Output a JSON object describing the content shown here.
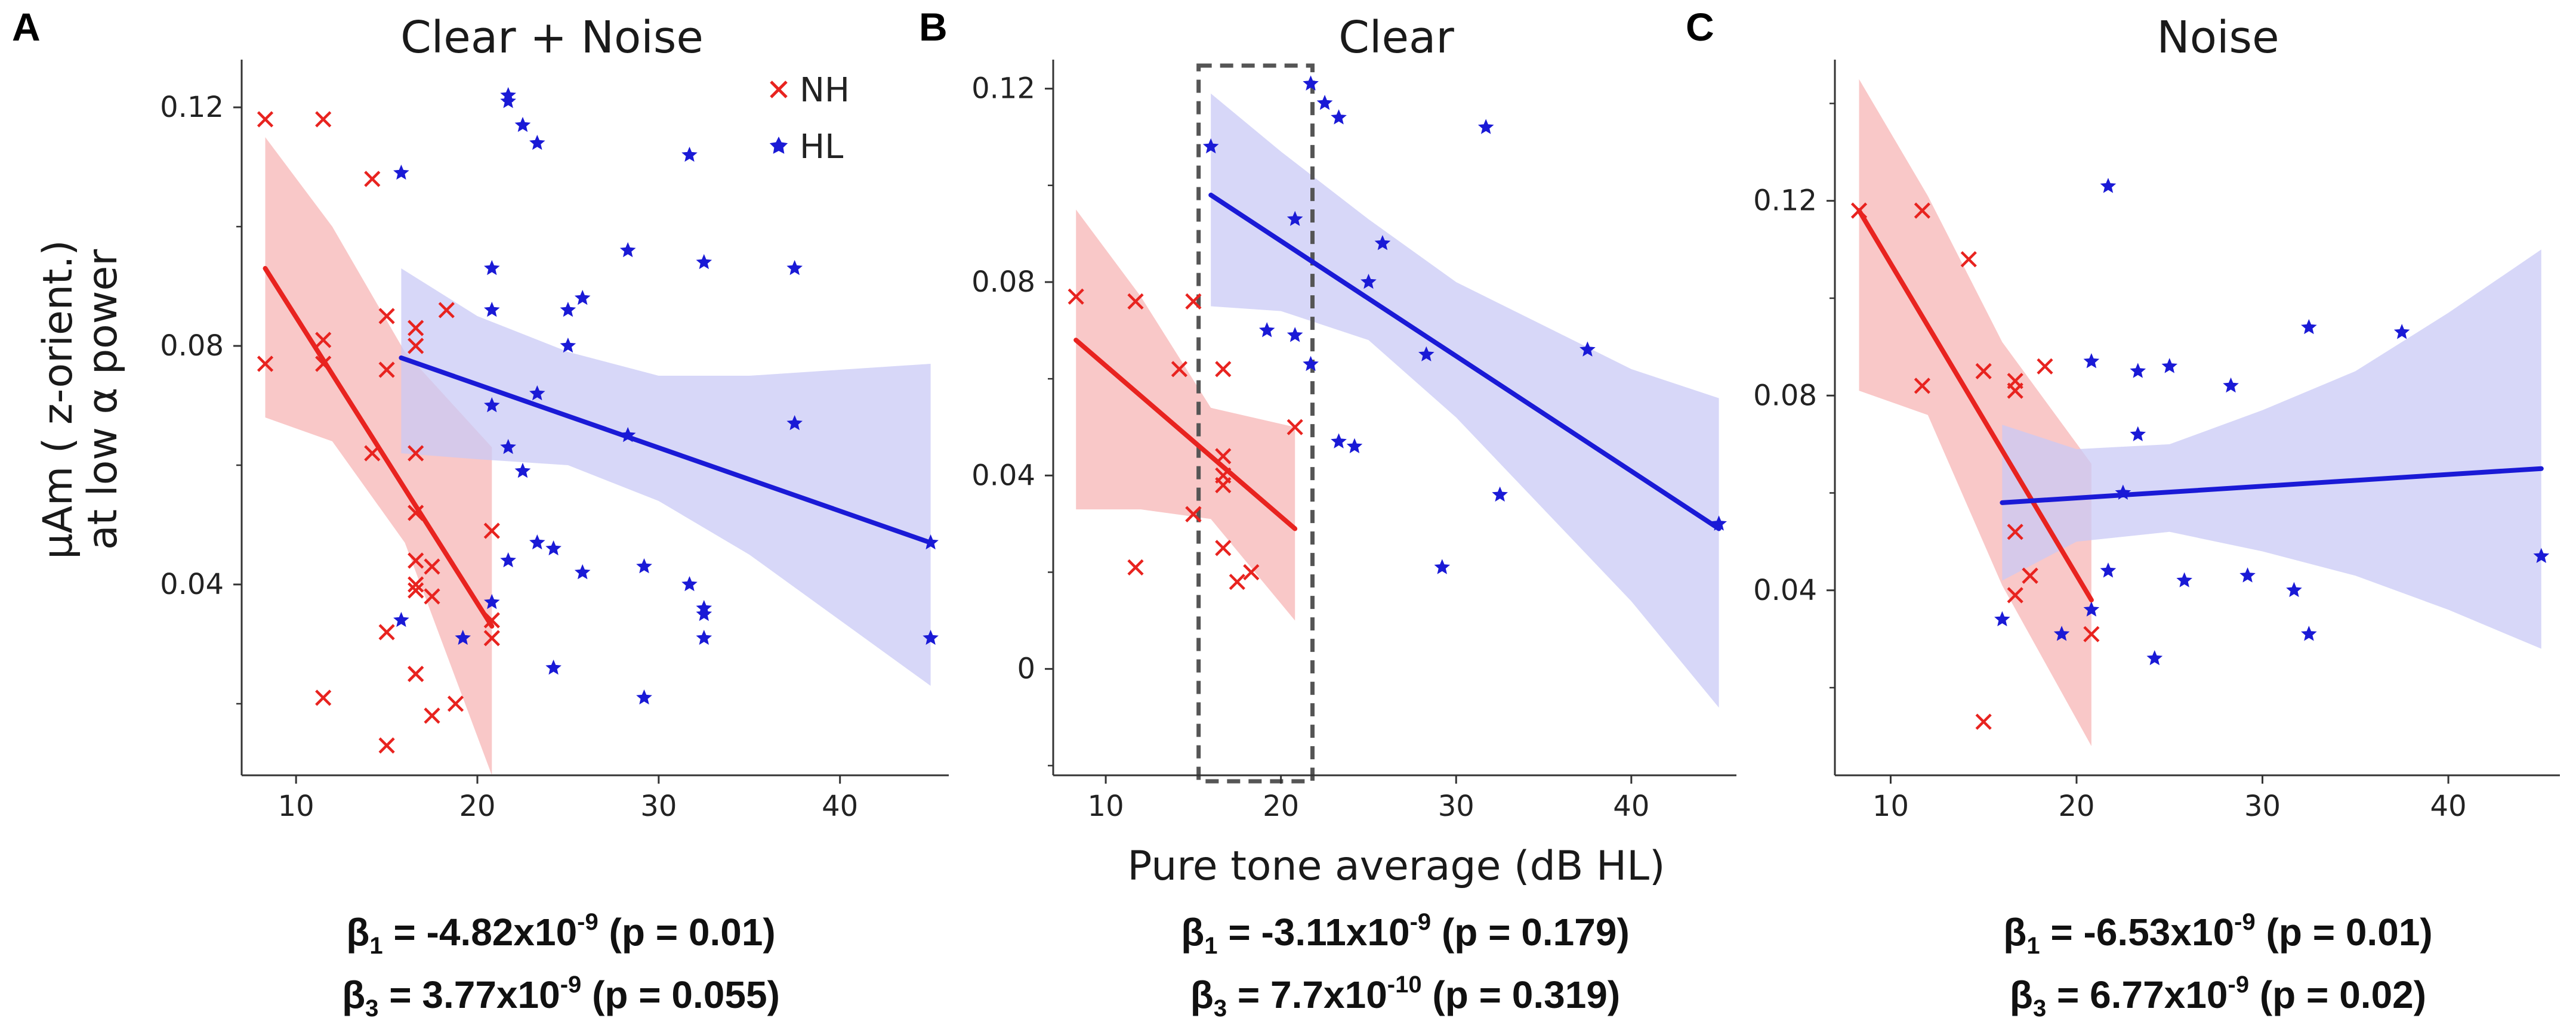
{
  "legend": {
    "nh_label": "NH",
    "hl_label": "HL"
  },
  "y_axis_label_line1": "μAm ( z-orient.)",
  "y_axis_label_line2": "at low α power",
  "x_axis_label": "Pure tone average (dB HL)",
  "colors": {
    "nh": "#e8231f",
    "hl": "#1a1ad6",
    "nh_band": "#f7b6b6",
    "hl_band": "#c9c9f5",
    "axis": "#333333",
    "box": "#555555"
  },
  "chart_data": [
    {
      "type": "scatter",
      "panel": "A",
      "title": "Clear + Noise",
      "xlim": [
        7,
        46
      ],
      "ylim": [
        0.008,
        0.128
      ],
      "xticks": [
        10,
        20,
        30,
        40
      ],
      "xtick_labels": [
        "10",
        "20",
        "30",
        "40"
      ],
      "yticks": [
        0.04,
        0.08,
        0.12
      ],
      "ytick_labels": [
        "0.04",
        "0.08",
        "0.12"
      ],
      "series": [
        {
          "name": "NH",
          "marker": "x",
          "x": [
            8.3,
            8.3,
            11.5,
            11.5,
            11.5,
            11.5,
            14.2,
            14.2,
            15.0,
            15.0,
            15.0,
            15.0,
            16.6,
            16.6,
            16.6,
            16.6,
            16.6,
            16.6,
            16.6,
            16.6,
            16.6,
            17.5,
            17.5,
            17.5,
            18.3,
            18.8,
            20.8,
            20.8,
            20.8
          ],
          "y": [
            0.118,
            0.077,
            0.118,
            0.081,
            0.077,
            0.021,
            0.108,
            0.062,
            0.085,
            0.076,
            0.032,
            0.013,
            0.083,
            0.08,
            0.062,
            0.052,
            0.044,
            0.04,
            0.039,
            0.025,
            0.025,
            0.043,
            0.038,
            0.018,
            0.086,
            0.02,
            0.049,
            0.034,
            0.031
          ],
          "fit": {
            "x": [
              8.3,
              20.8
            ],
            "y": [
              0.093,
              0.033
            ]
          },
          "ci": {
            "x": [
              8.3,
              12,
              16,
              20.8
            ],
            "upper": [
              0.115,
              0.1,
              0.079,
              0.063
            ],
            "lower": [
              0.068,
              0.064,
              0.047,
              0.003
            ]
          }
        },
        {
          "name": "HL",
          "marker": "star",
          "x": [
            15.8,
            15.8,
            19.2,
            20.8,
            20.8,
            20.8,
            20.8,
            21.7,
            21.7,
            21.7,
            21.7,
            22.5,
            22.5,
            23.3,
            23.3,
            23.3,
            24.2,
            24.2,
            25.0,
            25.0,
            25.8,
            25.8,
            28.3,
            28.3,
            29.2,
            29.2,
            31.7,
            31.7,
            32.5,
            32.5,
            32.5,
            32.5,
            37.5,
            37.5,
            45.0,
            45.0
          ],
          "y": [
            0.109,
            0.034,
            0.031,
            0.093,
            0.086,
            0.07,
            0.037,
            0.122,
            0.121,
            0.063,
            0.044,
            0.117,
            0.059,
            0.114,
            0.072,
            0.047,
            0.046,
            0.026,
            0.08,
            0.086,
            0.088,
            0.042,
            0.096,
            0.065,
            0.043,
            0.021,
            0.112,
            0.04,
            0.094,
            0.036,
            0.035,
            0.031,
            0.093,
            0.067,
            0.047,
            0.031
          ],
          "fit": {
            "x": [
              15.8,
              45.0
            ],
            "y": [
              0.078,
              0.047
            ]
          },
          "ci": {
            "x": [
              15.8,
              20,
              25,
              30,
              35,
              40,
              45
            ],
            "upper": [
              0.093,
              0.085,
              0.079,
              0.075,
              0.075,
              0.076,
              0.077
            ],
            "lower": [
              0.062,
              0.061,
              0.06,
              0.054,
              0.045,
              0.034,
              0.023
            ]
          }
        }
      ],
      "annotation_beta1": {
        "prefix": "β",
        "sub": "1",
        "value": " = -4.82x10",
        "exp": "-9",
        "suffix": " (p = 0.01)"
      },
      "annotation_beta3": {
        "prefix": "β",
        "sub": "3",
        "value": " = 3.77x10",
        "exp": "-9",
        "suffix": " (p = 0.055)"
      }
    },
    {
      "type": "scatter",
      "panel": "B",
      "title": "Clear",
      "xlim": [
        7,
        46
      ],
      "ylim": [
        -0.022,
        0.126
      ],
      "xticks": [
        10,
        20,
        30,
        40
      ],
      "xtick_labels": [
        "10",
        "20",
        "30",
        "40"
      ],
      "yticks": [
        0,
        0.04,
        0.08,
        0.12
      ],
      "ytick_labels": [
        "0",
        "0.04",
        "0.08",
        "0.12"
      ],
      "dashed_box": {
        "x": [
          15.3,
          21.8
        ]
      },
      "series": [
        {
          "name": "NH",
          "marker": "x",
          "x": [
            8.3,
            11.7,
            11.7,
            14.2,
            15.0,
            15.0,
            15.0,
            16.7,
            16.7,
            16.7,
            16.7,
            16.7,
            17.5,
            18.3,
            20.8
          ],
          "y": [
            0.077,
            0.076,
            0.021,
            0.062,
            0.076,
            0.032,
            0.032,
            0.062,
            0.044,
            0.04,
            0.038,
            0.025,
            0.018,
            0.02,
            0.05
          ],
          "fit": {
            "x": [
              8.3,
              20.8
            ],
            "y": [
              0.068,
              0.029
            ]
          },
          "ci": {
            "x": [
              8.3,
              12,
              16,
              20.8
            ],
            "upper": [
              0.095,
              0.077,
              0.054,
              0.05
            ],
            "lower": [
              0.033,
              0.033,
              0.031,
              0.01
            ]
          }
        },
        {
          "name": "HL",
          "marker": "star",
          "x": [
            16.0,
            19.2,
            20.8,
            20.8,
            21.7,
            21.7,
            22.5,
            23.3,
            23.3,
            24.2,
            25.0,
            25.8,
            28.3,
            29.2,
            31.7,
            32.5,
            37.5,
            45.0
          ],
          "y": [
            0.108,
            0.07,
            0.093,
            0.069,
            0.121,
            0.063,
            0.117,
            0.114,
            0.047,
            0.046,
            0.08,
            0.088,
            0.065,
            0.021,
            0.112,
            0.036,
            0.066,
            0.03
          ],
          "fit": {
            "x": [
              16.0,
              45.0
            ],
            "y": [
              0.098,
              0.029
            ]
          },
          "ci": {
            "x": [
              16.0,
              20,
              25,
              30,
              35,
              40,
              45
            ],
            "upper": [
              0.119,
              0.107,
              0.093,
              0.08,
              0.071,
              0.062,
              0.056
            ],
            "lower": [
              0.075,
              0.074,
              0.068,
              0.052,
              0.033,
              0.014,
              -0.008
            ]
          }
        }
      ],
      "annotation_beta1": {
        "prefix": "β",
        "sub": "1",
        "value": " = -3.11x10",
        "exp": "-9",
        "suffix": " (p = 0.179)"
      },
      "annotation_beta3": {
        "prefix": "β",
        "sub": "3",
        "value": " = 7.7x10",
        "exp": "-10",
        "suffix": " (p = 0.319)"
      }
    },
    {
      "type": "scatter",
      "panel": "C",
      "title": "Noise",
      "xlim": [
        7,
        46
      ],
      "ylim": [
        0.002,
        0.149
      ],
      "xticks": [
        10,
        20,
        30,
        40
      ],
      "xtick_labels": [
        "10",
        "20",
        "30",
        "40"
      ],
      "yticks": [
        0.04,
        0.08,
        0.12
      ],
      "ytick_labels": [
        "0.04",
        "0.08",
        "0.12"
      ],
      "series": [
        {
          "name": "NH",
          "marker": "x",
          "x": [
            8.3,
            11.7,
            11.7,
            14.2,
            15.0,
            15.0,
            16.7,
            16.7,
            16.7,
            16.7,
            17.5,
            17.5,
            18.3,
            20.8
          ],
          "y": [
            0.118,
            0.118,
            0.082,
            0.108,
            0.085,
            0.013,
            0.083,
            0.081,
            0.052,
            0.039,
            0.043,
            0.043,
            0.086,
            0.031
          ],
          "fit": {
            "x": [
              8.3,
              20.8
            ],
            "y": [
              0.118,
              0.038
            ]
          },
          "ci": {
            "x": [
              8.3,
              12,
              16,
              20.8
            ],
            "upper": [
              0.145,
              0.121,
              0.091,
              0.066
            ],
            "lower": [
              0.081,
              0.076,
              0.041,
              0.008
            ]
          }
        },
        {
          "name": "HL",
          "marker": "star",
          "x": [
            16.0,
            19.2,
            20.8,
            20.8,
            21.7,
            21.7,
            22.5,
            23.3,
            23.3,
            24.2,
            25.0,
            25.8,
            28.3,
            29.2,
            31.7,
            32.5,
            32.5,
            37.5,
            45.0
          ],
          "y": [
            0.034,
            0.031,
            0.087,
            0.036,
            0.123,
            0.044,
            0.06,
            0.085,
            0.072,
            0.026,
            0.086,
            0.042,
            0.082,
            0.043,
            0.04,
            0.094,
            0.031,
            0.093,
            0.047
          ],
          "fit": {
            "x": [
              16.0,
              45.0
            ],
            "y": [
              0.058,
              0.065
            ]
          },
          "ci": {
            "x": [
              16.0,
              20,
              25,
              30,
              35,
              40,
              45
            ],
            "upper": [
              0.074,
              0.069,
              0.07,
              0.077,
              0.085,
              0.097,
              0.11
            ],
            "lower": [
              0.042,
              0.05,
              0.052,
              0.048,
              0.043,
              0.036,
              0.028
            ]
          }
        }
      ],
      "annotation_beta1": {
        "prefix": "β",
        "sub": "1",
        "value": " = -6.53x10",
        "exp": "-9",
        "suffix": " (p = 0.01)"
      },
      "annotation_beta3": {
        "prefix": "β",
        "sub": "3",
        "value": " = 6.77x10",
        "exp": "-9",
        "suffix": " (p = 0.02)"
      }
    }
  ]
}
